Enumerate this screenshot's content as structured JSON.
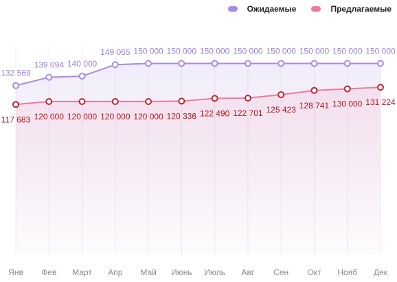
{
  "legend": {
    "expected_label": "Ожидаемые",
    "offered_label": "Предлагаемые"
  },
  "colors": {
    "expected_line": "#a78be0",
    "expected_label": "#9b7fd4",
    "offered_line": "#f07a98",
    "offered_marker": "#c0262d",
    "offered_label": "#b3151b",
    "tick_label": "#8a8a8a",
    "grid": "#ececf2"
  },
  "chart_data": {
    "type": "line",
    "categories": [
      "Янв",
      "Фев",
      "Март",
      "Апр",
      "Май",
      "Июнь",
      "Июль",
      "Авг",
      "Сен",
      "Окт",
      "Нояб",
      "Дек"
    ],
    "series": [
      {
        "name": "Ожидаемые",
        "values": [
          132569,
          139094,
          140000,
          149065,
          150000,
          150000,
          150000,
          150000,
          150000,
          150000,
          150000,
          150000
        ],
        "labels": [
          "132 569",
          "139 094",
          "140 000",
          "149 065",
          "150 000",
          "150 000",
          "150 000",
          "150 000",
          "150 000",
          "150 000",
          "150 000",
          "150 000"
        ]
      },
      {
        "name": "Предлагаемые",
        "values": [
          117683,
          120000,
          120000,
          120000,
          120000,
          120336,
          122490,
          122701,
          125423,
          128741,
          130000,
          131224
        ],
        "labels": [
          "117 683",
          "120 000",
          "120 000",
          "120 000",
          "120 000",
          "120 336",
          "122 490",
          "122 701",
          "125 423",
          "128 741",
          "130 000",
          "131 224"
        ]
      }
    ],
    "ylim": [
      0,
      200000
    ],
    "grid": "vertical",
    "legend_position": "top-right"
  }
}
